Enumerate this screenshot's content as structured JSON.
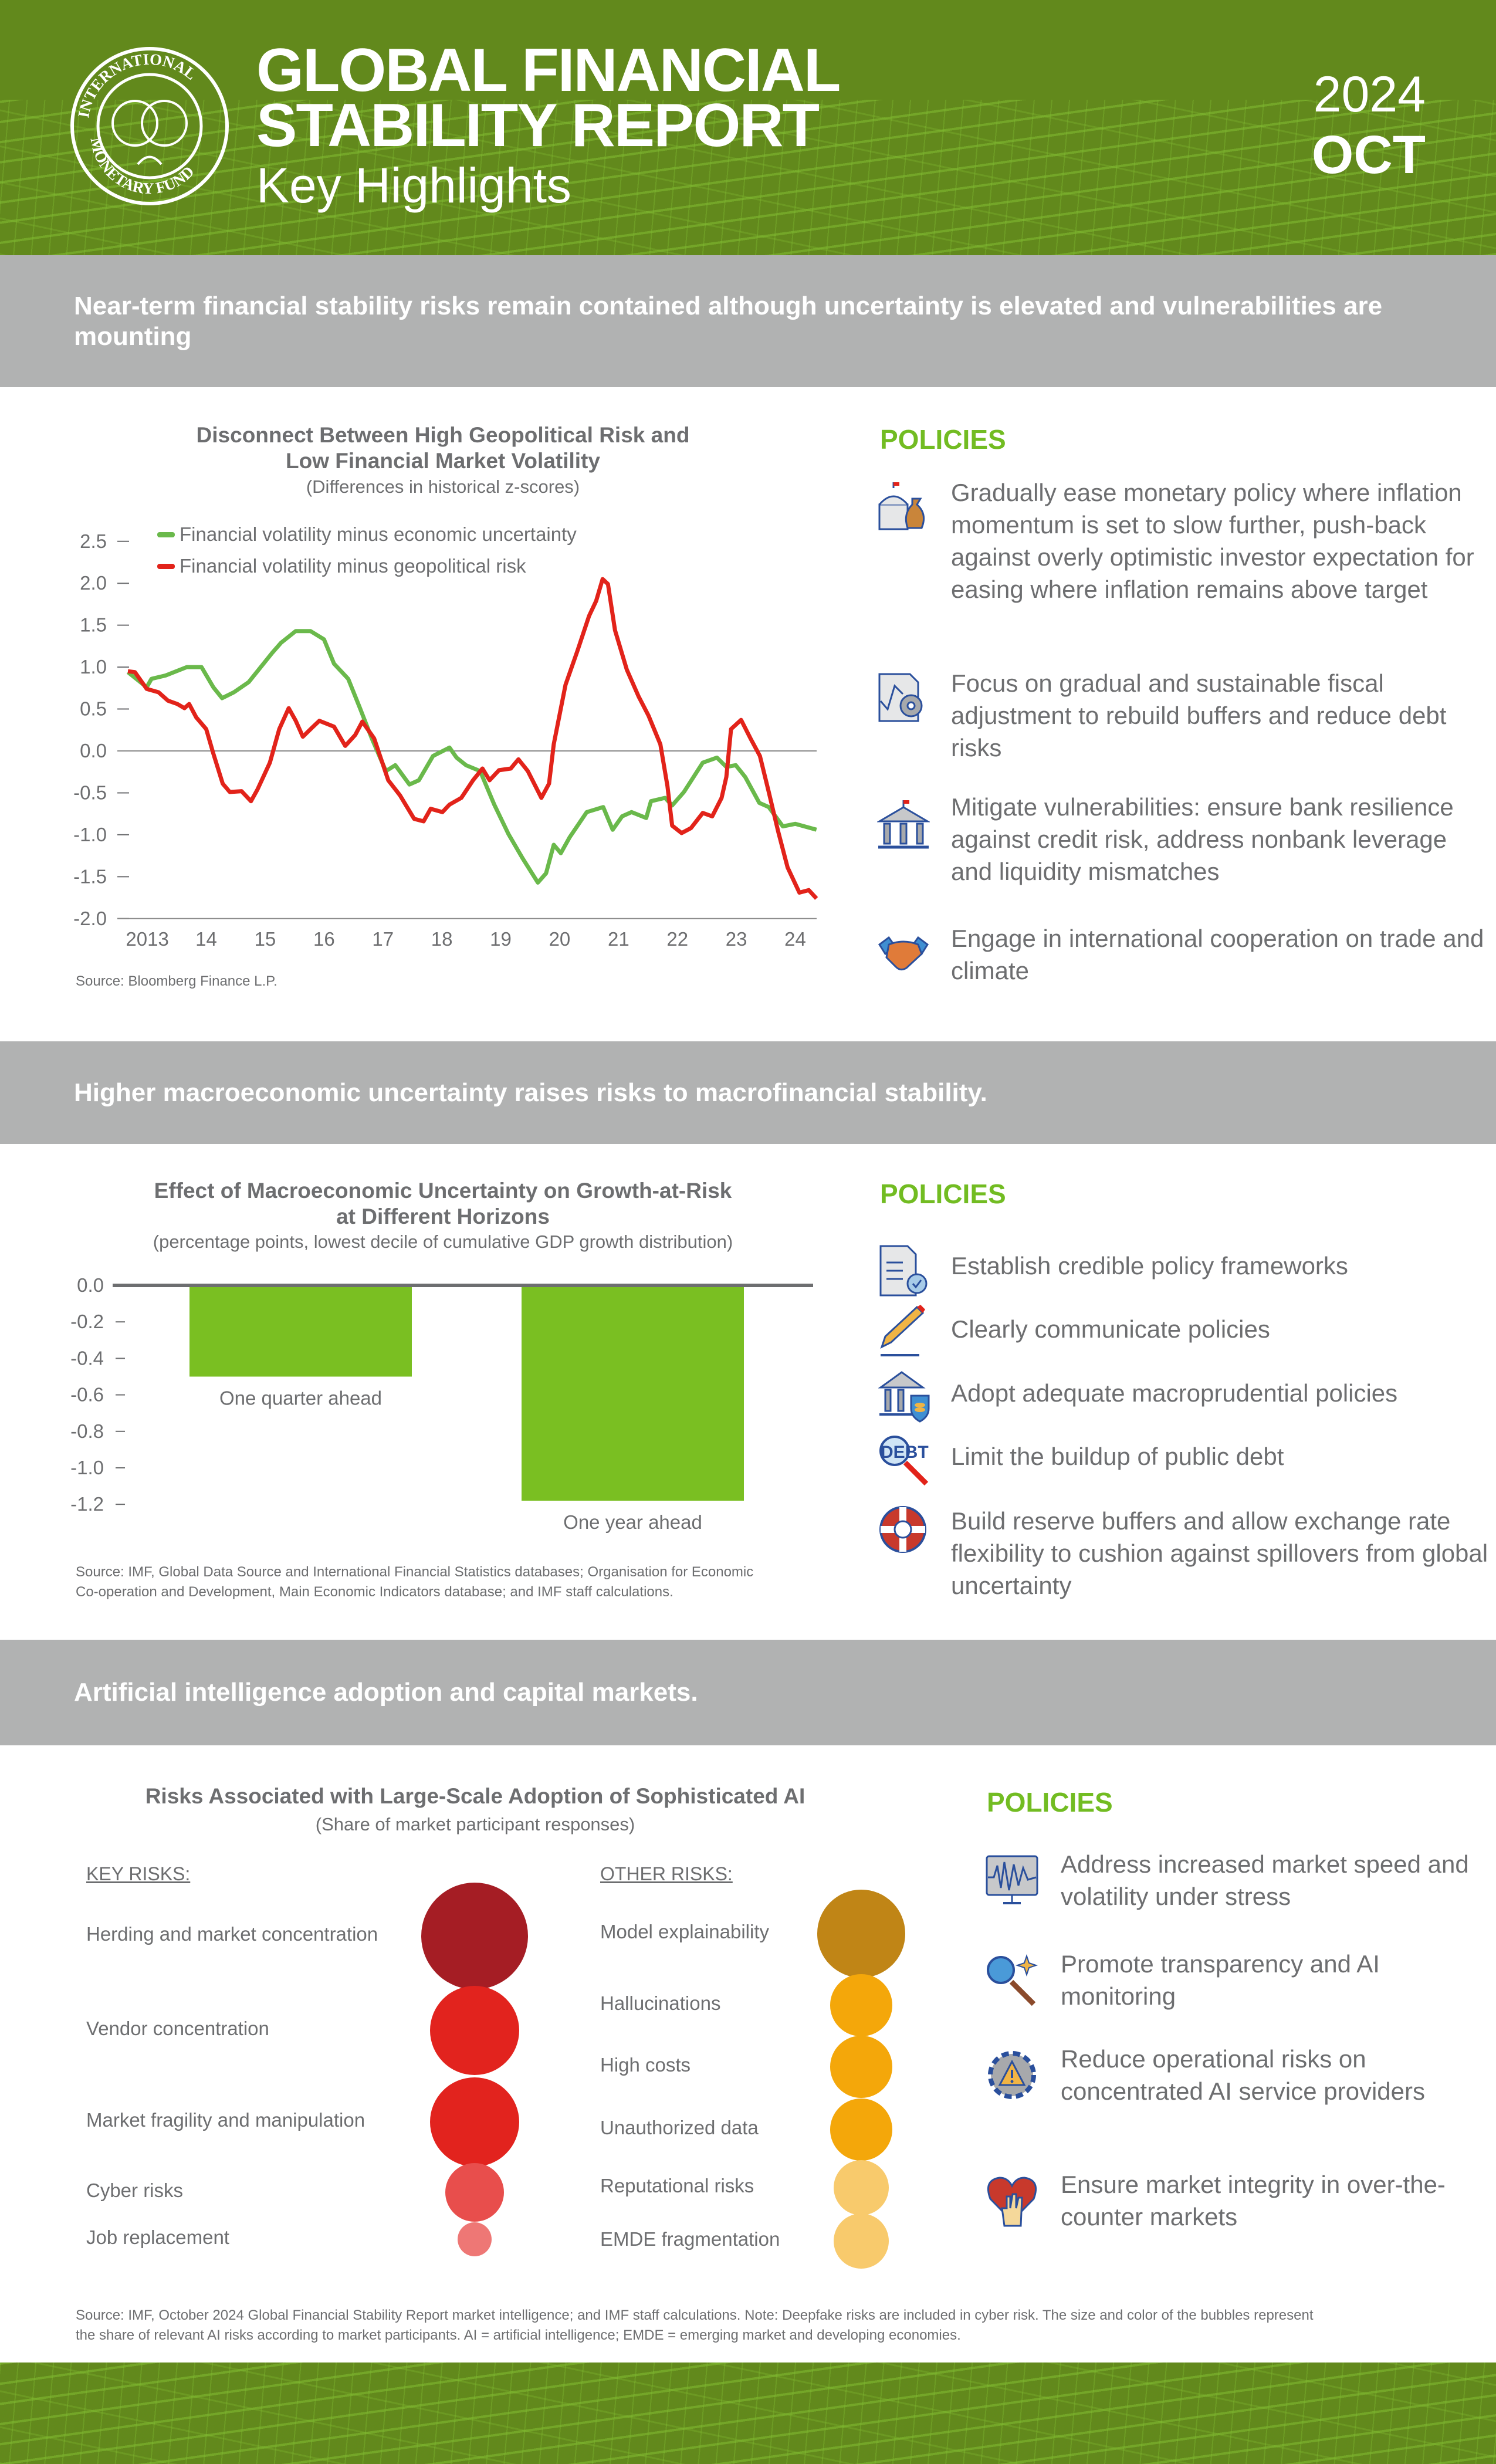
{
  "header": {
    "title_line1": "GLOBAL FINANCIAL",
    "title_line2": "STABILITY REPORT",
    "subtitle": "Key Highlights",
    "year": "2024",
    "month": "OCT",
    "logo_text": "INTERNATIONAL MONETARY FUND"
  },
  "colors": {
    "header_green": "#62891c",
    "banner_gray": "#b1b2b2",
    "policy_green": "#72bc22",
    "series_green": "#6ab94b",
    "series_red": "#e2231a",
    "bar_green": "#7abf22"
  },
  "sections": [
    {
      "banner": "Near-term financial stability risks remain contained although uncertainty is elevated and vulnerabilities are mounting",
      "policies_heading": "POLICIES",
      "policies": [
        {
          "icon": "central-bank-money-bag-icon",
          "text": "Gradually ease monetary policy where inflation momentum is set to slow further, push-back against overly optimistic investor expectation for easing where inflation remains above target"
        },
        {
          "icon": "document-gear-icon",
          "text": "Focus on gradual and sustainable fiscal adjustment to rebuild buffers and reduce debt risks"
        },
        {
          "icon": "bank-building-icon",
          "text": "Mitigate vulnerabilities: ensure bank resilience against credit risk, address nonbank leverage and liquidity mismatches"
        },
        {
          "icon": "handshake-icon",
          "text": "Engage in international cooperation on trade and climate"
        }
      ],
      "source": "Source: Bloomberg Finance L.P."
    },
    {
      "banner": "Higher macroeconomic uncertainty raises risks to macrofinancial stability.",
      "policies_heading": "POLICIES",
      "policies": [
        {
          "icon": "document-check-icon",
          "text": "Establish credible policy frameworks"
        },
        {
          "icon": "pencil-icon",
          "text": "Clearly communicate policies"
        },
        {
          "icon": "bank-shield-icon",
          "text": "Adopt adequate macroprudential policies"
        },
        {
          "icon": "debt-magnifier-icon",
          "text": "Limit the buildup of public debt"
        },
        {
          "icon": "lifebuoy-icon",
          "text": "Build reserve buffers and allow exchange rate flexibility to cushion against spillovers from global uncertainty"
        }
      ],
      "source_line1": "Source: IMF, Global Data Source and International Financial Statistics databases; Organisation for Economic",
      "source_line2": "Co-operation and Development, Main Economic Indicators database; and IMF staff calculations."
    },
    {
      "banner": "Artificial intelligence adoption and capital markets.",
      "policies_heading": "POLICIES",
      "policies": [
        {
          "icon": "monitor-volatility-icon",
          "text": "Address increased market speed and volatility under stress"
        },
        {
          "icon": "magnifier-sparkle-icon",
          "text": "Promote transparency and AI monitoring"
        },
        {
          "icon": "gear-warning-icon",
          "text": "Reduce operational risks on concentrated AI service providers"
        },
        {
          "icon": "heart-hand-icon",
          "text": "Ensure market integrity in over-the-counter markets"
        }
      ],
      "source_line1": "Source: IMF, October 2024 Global Financial Stability Report market intelligence; and IMF staff calculations. Note: Deepfake risks are included in cyber risk. The size and color of the bubbles represent",
      "source_line2": "the share of relevant AI risks according to market participants. AI = artificial intelligence; EMDE = emerging market and developing economies."
    }
  ],
  "chart_data": [
    {
      "type": "line",
      "title": "Disconnect Between High Geopolitical Risk and Low Financial Market Volatility",
      "title_line1": "Disconnect Between High Geopolitical Risk and",
      "title_line2": "Low Financial Market Volatility",
      "subtitle": "(Differences in historical z-scores)",
      "ylim": [
        -2.0,
        2.5
      ],
      "yticks": [
        "2.5",
        "2.0",
        "1.5",
        "1.0",
        "0.5",
        "0.0",
        "-0.5",
        "-1.0",
        "-1.5",
        "-2.0"
      ],
      "xticks": [
        "2013",
        "14",
        "15",
        "16",
        "17",
        "18",
        "19",
        "20",
        "21",
        "22",
        "23",
        "24"
      ],
      "legend_position": "top-left",
      "series": [
        {
          "name": "Financial volatility minus economic uncertainty",
          "color": "#6ab94b",
          "x": [
            2013.0,
            2013.32,
            2013.4,
            2013.64,
            2014.0,
            2014.25,
            2014.45,
            2014.6,
            2014.8,
            2015.05,
            2015.45,
            2015.6,
            2015.85,
            2016.1,
            2016.33,
            2016.5,
            2016.74,
            2016.94,
            2017.14,
            2017.38,
            2017.54,
            2017.78,
            2017.94,
            2018.18,
            2018.46,
            2018.58,
            2018.74,
            2018.98,
            2019.22,
            2019.46,
            2019.7,
            2019.96,
            2020.1,
            2020.23,
            2020.35,
            2020.5,
            2020.79,
            2021.07,
            2021.23,
            2021.39,
            2021.55,
            2021.8,
            2021.88,
            2022.12,
            2022.24,
            2022.44,
            2022.76,
            2023.0,
            2023.16,
            2023.32,
            2023.48,
            2023.72,
            2023.88,
            2024.12,
            2024.33,
            2024.69
          ],
          "y": [
            0.94,
            0.76,
            0.86,
            0.9,
            1.0,
            1.0,
            0.76,
            0.63,
            0.7,
            0.82,
            1.17,
            1.29,
            1.43,
            1.43,
            1.33,
            1.04,
            0.86,
            0.51,
            0.15,
            -0.24,
            -0.17,
            -0.4,
            -0.35,
            -0.06,
            0.04,
            -0.08,
            -0.17,
            -0.24,
            -0.64,
            -0.99,
            -1.28,
            -1.57,
            -1.46,
            -1.12,
            -1.22,
            -1.03,
            -0.73,
            -0.67,
            -0.94,
            -0.78,
            -0.73,
            -0.8,
            -0.6,
            -0.56,
            -0.65,
            -0.49,
            -0.14,
            -0.08,
            -0.19,
            -0.17,
            -0.31,
            -0.62,
            -0.67,
            -0.9,
            -0.87,
            -0.94
          ]
        },
        {
          "name": "Financial volatility minus geopolitical risk",
          "color": "#e2231a",
          "x": [
            2013.0,
            2013.12,
            2013.32,
            2013.52,
            2013.68,
            2013.84,
            2013.96,
            2014.04,
            2014.16,
            2014.33,
            2014.45,
            2014.61,
            2014.73,
            2014.93,
            2015.09,
            2015.2,
            2015.41,
            2015.57,
            2015.73,
            2015.85,
            2015.97,
            2016.13,
            2016.25,
            2016.5,
            2016.69,
            2016.86,
            2016.98,
            2017.18,
            2017.42,
            2017.62,
            2017.86,
            2018.02,
            2018.14,
            2018.34,
            2018.46,
            2018.66,
            2018.86,
            2019.02,
            2019.14,
            2019.3,
            2019.5,
            2019.63,
            2019.79,
            2020.02,
            2020.15,
            2020.23,
            2020.43,
            2020.63,
            2020.83,
            2020.95,
            2021.06,
            2021.15,
            2021.27,
            2021.47,
            2021.67,
            2021.84,
            2022.04,
            2022.16,
            2022.24,
            2022.4,
            2022.56,
            2022.76,
            2022.92,
            2023.08,
            2023.16,
            2023.24,
            2023.41,
            2023.57,
            2023.73,
            2023.88,
            2024.04,
            2024.2,
            2024.4,
            2024.56,
            2024.69
          ],
          "y": [
            0.95,
            0.94,
            0.74,
            0.7,
            0.6,
            0.56,
            0.51,
            0.56,
            0.4,
            0.26,
            -0.03,
            -0.39,
            -0.49,
            -0.48,
            -0.6,
            -0.46,
            -0.14,
            0.26,
            0.51,
            0.36,
            0.17,
            0.28,
            0.36,
            0.29,
            0.06,
            0.19,
            0.35,
            0.15,
            -0.35,
            -0.53,
            -0.81,
            -0.84,
            -0.69,
            -0.73,
            -0.64,
            -0.56,
            -0.35,
            -0.21,
            -0.35,
            -0.23,
            -0.21,
            -0.1,
            -0.24,
            -0.56,
            -0.39,
            0.08,
            0.79,
            1.19,
            1.61,
            1.79,
            2.05,
            1.99,
            1.44,
            0.97,
            0.65,
            0.42,
            0.08,
            -0.42,
            -0.89,
            -0.98,
            -0.92,
            -0.74,
            -0.78,
            -0.56,
            -0.31,
            0.26,
            0.37,
            0.15,
            -0.06,
            -0.49,
            -0.96,
            -1.39,
            -1.69,
            -1.66,
            -1.76
          ]
        }
      ]
    },
    {
      "type": "bar",
      "title": "Effect of Macroeconomic Uncertainty on Growth-at-Risk at Different Horizons",
      "title_line1": "Effect of Macroeconomic Uncertainty on Growth-at-Risk",
      "title_line2": "at Different Horizons",
      "subtitle": "(percentage points, lowest decile of cumulative GDP growth distribution)",
      "categories": [
        "One quarter ahead",
        "One year ahead"
      ],
      "values": [
        -0.5,
        -1.18
      ],
      "ylim": [
        -1.2,
        0.0
      ],
      "yticks": [
        "0.0",
        "-0.2",
        "-0.4",
        "-0.6",
        "-0.8",
        "-1.0",
        "-1.2"
      ],
      "color": "#7abf22"
    },
    {
      "type": "bubble",
      "title": "Risks Associated with Large-Scale Adoption of Sophisticated AI",
      "subtitle": "(Share of market participant responses)",
      "groups": [
        {
          "heading": "KEY RISKS:",
          "items": [
            {
              "label": "Herding and market concentration",
              "relative_share": 1.0,
              "color": "#a51d24"
            },
            {
              "label": "Vendor concentration",
              "relative_share": 0.84,
              "color": "#e2231e"
            },
            {
              "label": "Market fragility and manipulation",
              "relative_share": 0.84,
              "color": "#e2231e"
            },
            {
              "label": "Cyber risks",
              "relative_share": 0.55,
              "color": "#e84e4c"
            },
            {
              "label": "Job replacement",
              "relative_share": 0.32,
              "color": "#ee7775"
            }
          ]
        },
        {
          "heading": "OTHER RISKS:",
          "items": [
            {
              "label": "Model explainability",
              "relative_share": 0.82,
              "color": "#c08516"
            },
            {
              "label": "Hallucinations",
              "relative_share": 0.58,
              "color": "#f4a70a"
            },
            {
              "label": "High costs",
              "relative_share": 0.58,
              "color": "#f4a70a"
            },
            {
              "label": "Unauthorized data",
              "relative_share": 0.58,
              "color": "#f4a70a"
            },
            {
              "label": "Reputational risks",
              "relative_share": 0.52,
              "color": "#f8ca6c"
            },
            {
              "label": "EMDE fragmentation",
              "relative_share": 0.52,
              "color": "#f8ca6c"
            }
          ]
        }
      ]
    }
  ]
}
